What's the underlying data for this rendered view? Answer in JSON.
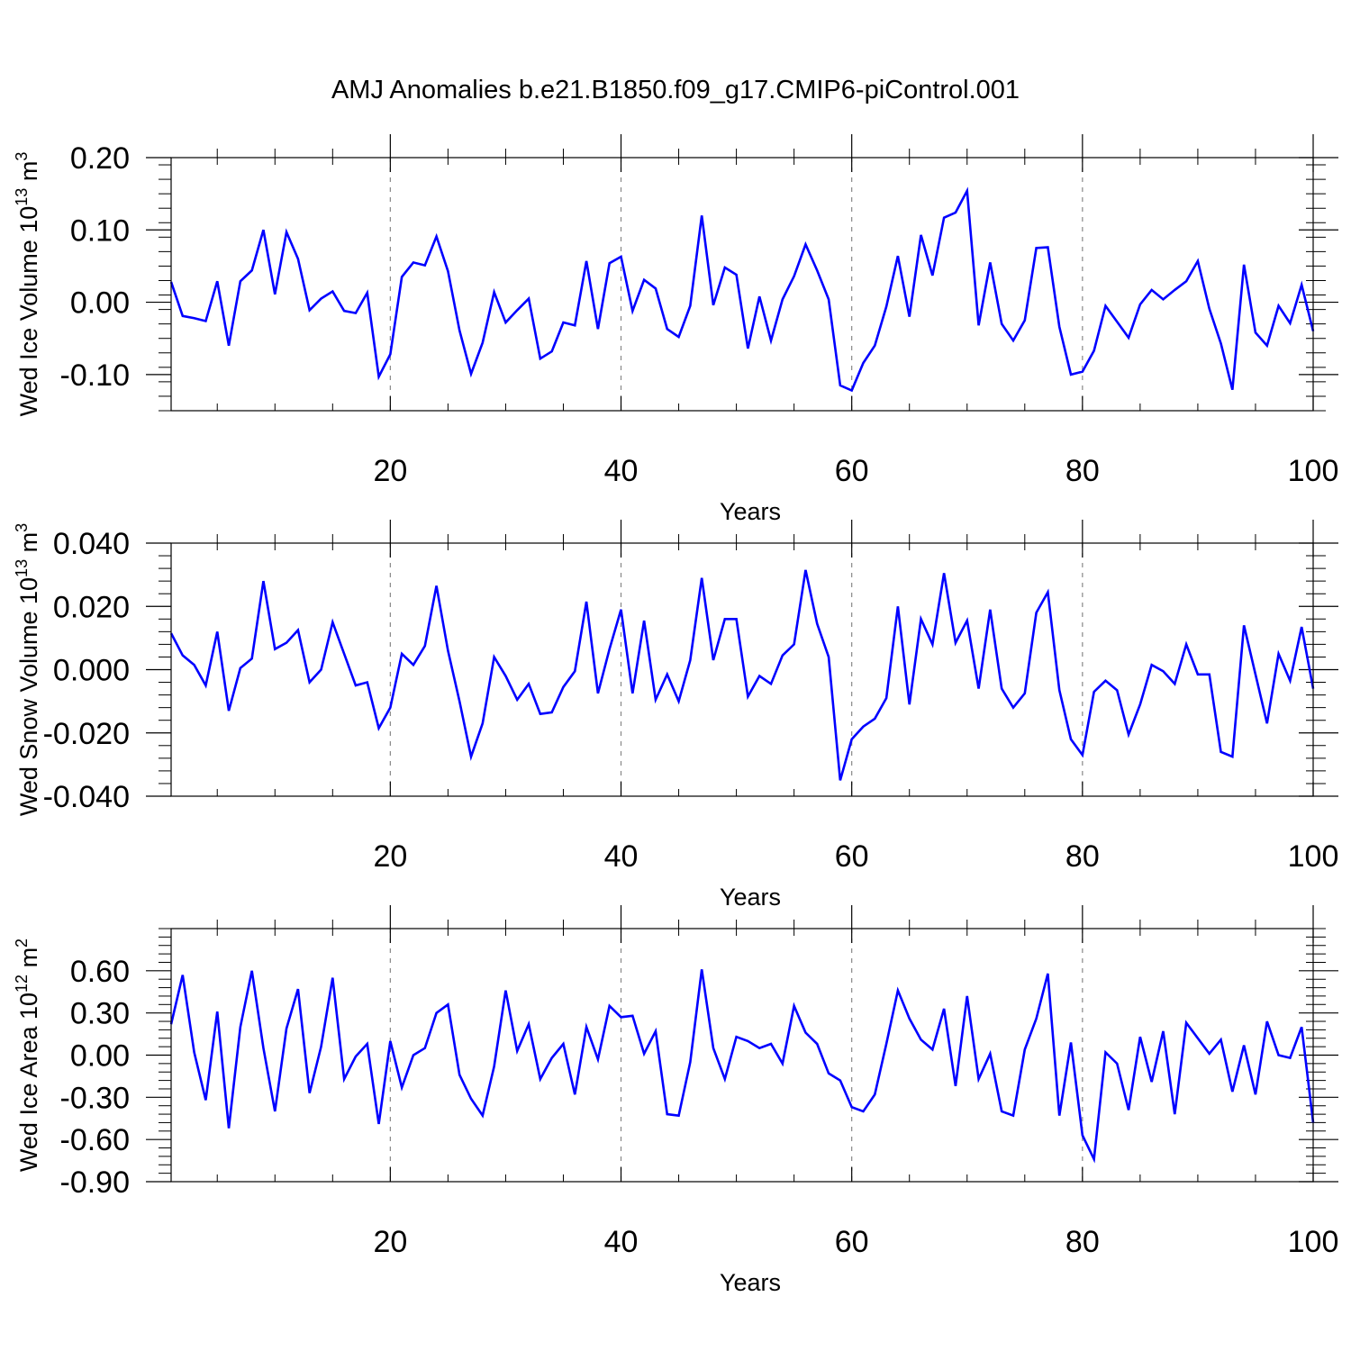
{
  "title": "AMJ Anomalies b.e21.B1850.f09_g17.CMIP6-piControl.001",
  "chart_data": [
    {
      "type": "line",
      "ylabel": "Wed Ice Volume 10",
      "ylabel_exp": "13",
      "ylabel_unit": " m",
      "ylabel_unit_exp": "3",
      "xlabel": "Years",
      "xlim": [
        1,
        100
      ],
      "ylim": [
        -0.15,
        0.2
      ],
      "yticks": [
        -0.1,
        0.0,
        0.1,
        0.2
      ],
      "ytick_labels": [
        "-0.10",
        "0.00",
        "0.10",
        "0.20"
      ],
      "xticks": [
        20,
        40,
        60,
        80,
        100
      ],
      "xtick_labels": [
        "20",
        "40",
        "60",
        "80",
        "100"
      ],
      "grid_x": true,
      "line_color": "#0000ff",
      "series": [
        {
          "values": [
            0.028,
            -0.019,
            -0.022,
            -0.026,
            0.029,
            -0.06,
            0.029,
            0.044,
            0.1,
            0.011,
            0.097,
            0.06,
            -0.011,
            0.005,
            0.015,
            -0.012,
            -0.015,
            0.013,
            -0.103,
            -0.072,
            0.035,
            0.055,
            0.051,
            0.091,
            0.043,
            -0.039,
            -0.099,
            -0.056,
            0.014,
            -0.028,
            -0.011,
            0.005,
            -0.078,
            -0.068,
            -0.028,
            -0.032,
            0.057,
            -0.037,
            0.054,
            0.063,
            -0.012,
            0.031,
            0.019,
            -0.037,
            -0.048,
            -0.005,
            0.12,
            -0.004,
            0.048,
            0.038,
            -0.064,
            0.008,
            -0.053,
            0.004,
            0.036,
            0.08,
            0.044,
            0.004,
            -0.115,
            -0.122,
            -0.084,
            -0.06,
            -0.006,
            0.064,
            -0.02,
            0.093,
            0.037,
            0.117,
            0.124,
            0.154,
            -0.032,
            0.055,
            -0.03,
            -0.053,
            -0.025,
            0.075,
            0.076,
            -0.034,
            -0.1,
            -0.096,
            -0.067,
            -0.005,
            -0.027,
            -0.049,
            -0.003,
            0.017,
            0.004,
            0.017,
            0.029,
            0.057,
            -0.009,
            -0.057,
            -0.121,
            0.052,
            -0.042,
            -0.06,
            -0.005,
            -0.029,
            0.024,
            -0.04
          ]
        }
      ]
    },
    {
      "type": "line",
      "ylabel": "Wed Snow Volume 10",
      "ylabel_exp": "13",
      "ylabel_unit": " m",
      "ylabel_unit_exp": "3",
      "xlabel": "Years",
      "xlim": [
        1,
        100
      ],
      "ylim": [
        -0.04,
        0.04
      ],
      "yticks": [
        -0.04,
        -0.02,
        0.0,
        0.02,
        0.04
      ],
      "ytick_labels": [
        "-0.040",
        "-0.020",
        "0.000",
        "0.020",
        "0.040"
      ],
      "xticks": [
        20,
        40,
        60,
        80,
        100
      ],
      "xtick_labels": [
        "20",
        "40",
        "60",
        "80",
        "100"
      ],
      "grid_x": true,
      "line_color": "#0000ff",
      "series": [
        {
          "values": [
            0.0115,
            0.0045,
            0.0015,
            -0.005,
            0.012,
            -0.013,
            0.0005,
            0.0035,
            0.028,
            0.0065,
            0.0085,
            0.0125,
            -0.004,
            0.0,
            0.015,
            0.005,
            -0.005,
            -0.004,
            -0.0185,
            -0.012,
            0.005,
            0.0015,
            0.0075,
            0.0265,
            0.006,
            -0.01,
            -0.0275,
            -0.017,
            0.004,
            -0.002,
            -0.0095,
            -0.0045,
            -0.014,
            -0.0135,
            -0.0055,
            -0.0005,
            0.0215,
            -0.0075,
            0.0065,
            0.019,
            -0.0075,
            0.0155,
            -0.0095,
            -0.0015,
            -0.01,
            0.003,
            0.029,
            0.003,
            0.016,
            0.016,
            -0.0085,
            -0.002,
            -0.0045,
            0.0045,
            0.008,
            0.0315,
            0.0145,
            0.004,
            -0.035,
            -0.022,
            -0.018,
            -0.0155,
            -0.009,
            0.02,
            -0.011,
            0.016,
            0.008,
            0.0305,
            0.0085,
            0.0155,
            -0.006,
            0.019,
            -0.006,
            -0.012,
            -0.0075,
            0.018,
            0.0245,
            -0.0065,
            -0.022,
            -0.027,
            -0.007,
            -0.0035,
            -0.0065,
            -0.0205,
            -0.011,
            0.0015,
            -0.0005,
            -0.0045,
            0.008,
            -0.0015,
            -0.0015,
            -0.026,
            -0.0275,
            0.014,
            -0.0015,
            -0.017,
            0.005,
            -0.0035,
            0.0135,
            -0.006
          ]
        }
      ]
    },
    {
      "type": "line",
      "ylabel": "Wed Ice Area 10",
      "ylabel_exp": "12",
      "ylabel_unit": " m",
      "ylabel_unit_exp": "2",
      "xlabel": "Years",
      "xlim": [
        1,
        100
      ],
      "ylim": [
        -0.9,
        0.9
      ],
      "yticks": [
        -0.9,
        -0.6,
        -0.3,
        0.0,
        0.3,
        0.6
      ],
      "ytick_labels": [
        "-0.90",
        "-0.60",
        "-0.30",
        "0.00",
        "0.30",
        "0.60"
      ],
      "xticks": [
        20,
        40,
        60,
        80,
        100
      ],
      "xtick_labels": [
        "20",
        "40",
        "60",
        "80",
        "100"
      ],
      "grid_x": true,
      "line_color": "#0000ff",
      "series": [
        {
          "values": [
            0.22,
            0.57,
            0.02,
            -0.32,
            0.31,
            -0.52,
            0.2,
            0.6,
            0.05,
            -0.4,
            0.19,
            0.47,
            -0.27,
            0.06,
            0.55,
            -0.17,
            -0.01,
            0.08,
            -0.49,
            0.1,
            -0.23,
            0.0,
            0.05,
            0.3,
            0.36,
            -0.14,
            -0.31,
            -0.43,
            -0.08,
            0.46,
            0.03,
            0.22,
            -0.17,
            -0.02,
            0.08,
            -0.28,
            0.2,
            -0.03,
            0.35,
            0.27,
            0.28,
            0.01,
            0.17,
            -0.42,
            -0.43,
            -0.05,
            0.61,
            0.05,
            -0.17,
            0.13,
            0.1,
            0.05,
            0.08,
            -0.06,
            0.35,
            0.16,
            0.08,
            -0.13,
            -0.18,
            -0.37,
            -0.4,
            -0.28,
            0.08,
            0.46,
            0.26,
            0.11,
            0.04,
            0.33,
            -0.22,
            0.42,
            -0.17,
            0.01,
            -0.4,
            -0.43,
            0.04,
            0.26,
            0.58,
            -0.43,
            0.09,
            -0.57,
            -0.74,
            0.02,
            -0.06,
            -0.39,
            0.13,
            -0.19,
            0.17,
            -0.42,
            0.23,
            0.12,
            0.01,
            0.11,
            -0.26,
            0.07,
            -0.28,
            0.24,
            0.0,
            -0.02,
            0.2,
            -0.48
          ]
        }
      ]
    }
  ]
}
